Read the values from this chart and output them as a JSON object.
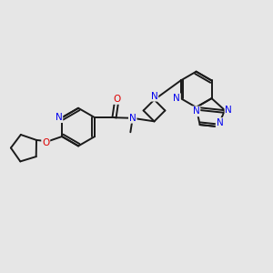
{
  "bg_color": "#e6e6e6",
  "bond_color": "#1a1a1a",
  "N_color": "#0000ee",
  "O_color": "#dd0000",
  "lw": 1.4,
  "xlim": [
    0,
    10
  ],
  "ylim": [
    0,
    10
  ]
}
